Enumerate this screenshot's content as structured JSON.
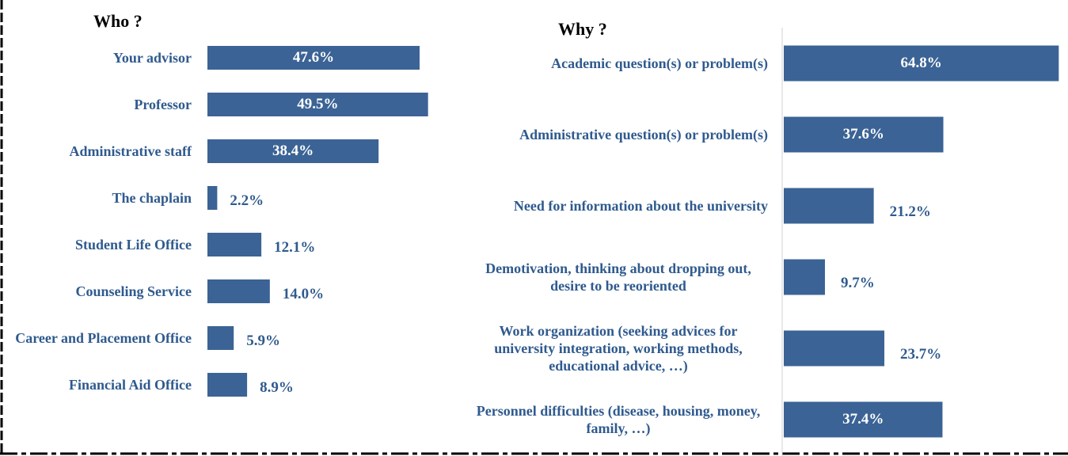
{
  "chart_data": [
    {
      "type": "bar",
      "orientation": "horizontal",
      "title": "Who ?",
      "color": "#3b6395",
      "categories": [
        "Your advisor",
        "Professor",
        "Administrative staff",
        "The chaplain",
        "Student Life Office",
        "Counseling Service",
        "Career and Placement Office",
        "Financial Aid Office"
      ],
      "values": [
        47.6,
        49.5,
        38.4,
        2.2,
        12.1,
        14.0,
        5.9,
        8.9
      ],
      "value_labels": [
        "47.6%",
        "49.5%",
        "38.4%",
        "2.2%",
        "12.1%",
        "14.0%",
        "5.9%",
        "8.9%"
      ]
    },
    {
      "type": "bar",
      "orientation": "horizontal",
      "title": "Why ?",
      "color": "#3b6395",
      "categories": [
        "Academic question(s) or problem(s)",
        "Administrative question(s) or problem(s)",
        "Need for information about the university",
        "Demotivation, thinking about dropping out, desire to be reoriented",
        "Work organization (seeking advices for university integration, working methods, educational advice, …)",
        "Personnel difficulties (disease, housing, money, family, …)"
      ],
      "values": [
        64.8,
        37.6,
        21.2,
        9.7,
        23.7,
        37.4
      ],
      "value_labels": [
        "64.8%",
        "37.6%",
        "21.2%",
        "9.7%",
        "23.7%",
        "37.4%"
      ]
    }
  ]
}
